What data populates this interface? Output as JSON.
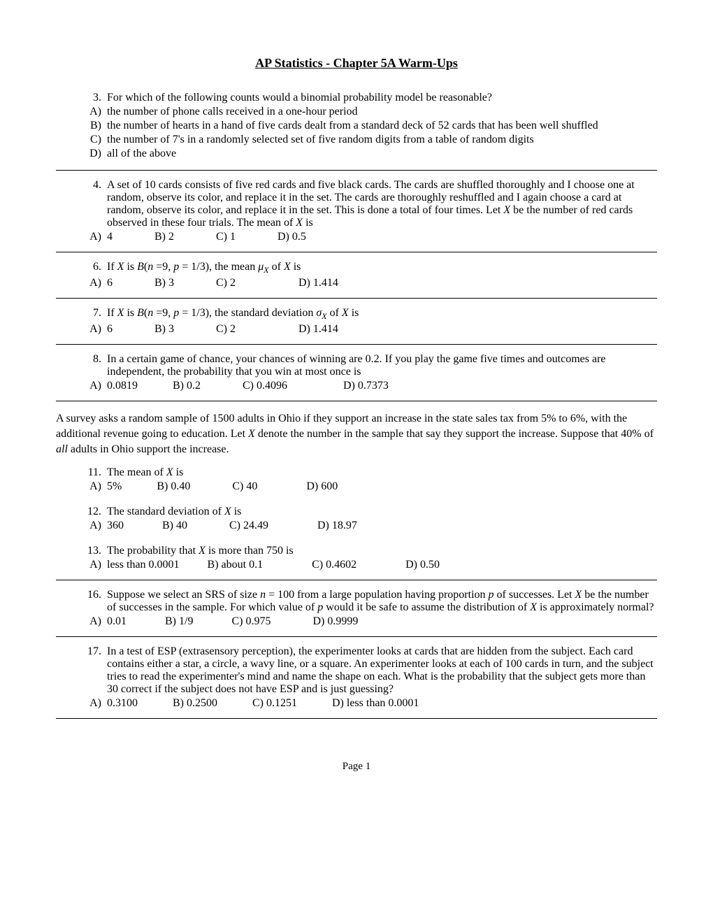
{
  "title": "AP Statistics - Chapter 5A Warm-Ups",
  "questions": [
    {
      "num": "3.",
      "text": "For which of the following counts would a binomial probability model be reasonable?",
      "layout": "stacked",
      "options": [
        {
          "label": "A)",
          "text": "the number of phone calls received in a one-hour period"
        },
        {
          "label": "B)",
          "text": "the number of hearts in a hand of five cards dealt from a standard deck of 52 cards that has been well shuffled"
        },
        {
          "label": "C)",
          "text": "the number of 7's in a randomly selected set of five random digits from a table of random digits"
        },
        {
          "label": "D)",
          "text": "all of the above"
        }
      ],
      "border": true
    },
    {
      "num": "4.",
      "html": "A set of 10 cards consists of five red cards and five black cards. The cards are shuffled thoroughly and I choose one at random, observe its color, and replace it in the set. The cards are thoroughly reshuffled and I again choose a card at random, observe its color, and replace it in the set. This is done a total of four times. Let <span class=\"italic\">X</span> be the number of red cards observed in these four trials. The mean of <span class=\"italic\">X</span> is",
      "layout": "inline",
      "options": [
        {
          "label": "A)",
          "text": "4"
        },
        {
          "label": "B)",
          "text": "2"
        },
        {
          "label": "C)",
          "text": "1"
        },
        {
          "label": "D)",
          "text": "0.5"
        }
      ],
      "gaps": [
        0,
        60,
        60,
        60
      ],
      "border": true
    },
    {
      "num": "6.",
      "html": "If <span class=\"italic\">X</span> is <span class=\"italic\">B</span>(<span class=\"italic\">n</span> =9, <span class=\"italic\">p</span> = 1/3), the mean <span class=\"italic\">&mu;</span><span class=\"sub\">X</span> of <span class=\"italic\">X</span> is",
      "layout": "inline",
      "options": [
        {
          "label": "A)",
          "text": "6"
        },
        {
          "label": "B)",
          "text": "3"
        },
        {
          "label": "C)",
          "text": "2"
        },
        {
          "label": "D)",
          "text": "1.414"
        }
      ],
      "gaps": [
        0,
        60,
        60,
        90
      ],
      "border": true
    },
    {
      "num": "7.",
      "html": "If <span class=\"italic\">X</span> is <span class=\"italic\">B</span>(<span class=\"italic\">n</span> =9, <span class=\"italic\">p</span> = 1/3), the standard deviation <span class=\"italic\">&sigma;</span><span class=\"sub\">X</span> of <span class=\"italic\">X</span> is",
      "layout": "inline",
      "options": [
        {
          "label": "A)",
          "text": "6"
        },
        {
          "label": "B)",
          "text": "3"
        },
        {
          "label": "C)",
          "text": "2"
        },
        {
          "label": "D)",
          "text": "1.414"
        }
      ],
      "gaps": [
        0,
        60,
        60,
        90
      ],
      "border": true
    },
    {
      "num": "8.",
      "text": "In a certain game of chance, your chances of winning are 0.2. If you play the game five times and outcomes are independent, the probability that you win at most once is",
      "layout": "inline",
      "options": [
        {
          "label": "A)",
          "text": "0.0819"
        },
        {
          "label": "B)",
          "text": "0.2"
        },
        {
          "label": "C)",
          "text": "0.4096"
        },
        {
          "label": "D)",
          "text": "0.7373"
        }
      ],
      "gaps": [
        0,
        50,
        60,
        80
      ],
      "border": true
    }
  ],
  "passage_html": "A survey asks a random sample of 1500 adults in Ohio if they support an increase in the state sales tax from 5% to 6%, with the additional revenue going to education. Let <span class=\"italic\">X</span> denote the number in the sample that say they support the increase. Suppose that 40% of <span class=\"italic\">all</span> adults in Ohio support the increase.",
  "sub_questions": [
    {
      "num": "11.",
      "html": "The mean of <span class=\"italic\">X</span> is",
      "options": [
        {
          "label": "A)",
          "text": "5%"
        },
        {
          "label": "B)",
          "text": "0.40"
        },
        {
          "label": "C)",
          "text": "40"
        },
        {
          "label": "D)",
          "text": "600"
        }
      ],
      "gaps": [
        0,
        50,
        60,
        70
      ]
    },
    {
      "num": "12.",
      "html": "The standard deviation of <span class=\"italic\">X</span> is",
      "options": [
        {
          "label": "A)",
          "text": "360"
        },
        {
          "label": "B)",
          "text": "40"
        },
        {
          "label": "C)",
          "text": "24.49"
        },
        {
          "label": "D)",
          "text": "18.97"
        }
      ],
      "gaps": [
        0,
        55,
        60,
        70
      ]
    },
    {
      "num": "13.",
      "html": "The probability that <span class=\"italic\">X</span> is more than 750 is",
      "options": [
        {
          "label": "A)",
          "text": "less than 0.0001"
        },
        {
          "label": "B)",
          "text": "about 0.1"
        },
        {
          "label": "C)",
          "text": "0.4602"
        },
        {
          "label": "D)",
          "text": "0.50"
        }
      ],
      "gaps": [
        0,
        40,
        70,
        70
      ]
    }
  ],
  "more_questions": [
    {
      "num": "16.",
      "html": "Suppose we select an SRS of size <span class=\"italic\">n</span> = 100 from a large population having proportion <span class=\"italic\">p</span> of successes. Let <span class=\"italic\">X</span> be the number of successes in the sample. For which value of <span class=\"italic\">p</span> would it be safe to assume the distribution of <span class=\"italic\">X</span> is approximately normal?",
      "options": [
        {
          "label": "A)",
          "text": "0.01"
        },
        {
          "label": "B)",
          "text": "1/9"
        },
        {
          "label": "C)",
          "text": "0.975"
        },
        {
          "label": "D)",
          "text": "0.9999"
        }
      ],
      "gaps": [
        0,
        55,
        55,
        60
      ],
      "border": true
    },
    {
      "num": "17.",
      "text": "In a test of ESP (extrasensory perception), the experimenter looks at cards that are hidden from the subject. Each card contains either a star, a circle, a wavy line, or a square. An experimenter looks at each of 100 cards in turn, and the subject tries to read the experimenter's mind and name the shape on each. What is the probability that the subject gets more than 30 correct if the subject does not have ESP and is just guessing?",
      "options": [
        {
          "label": "A)",
          "text": "0.3100"
        },
        {
          "label": "B)",
          "text": "0.2500"
        },
        {
          "label": "C)",
          "text": "0.1251"
        },
        {
          "label": "D)",
          "text": "less than 0.0001"
        }
      ],
      "gaps": [
        0,
        50,
        50,
        50
      ],
      "border": true
    }
  ],
  "page_footer": "Page 1"
}
